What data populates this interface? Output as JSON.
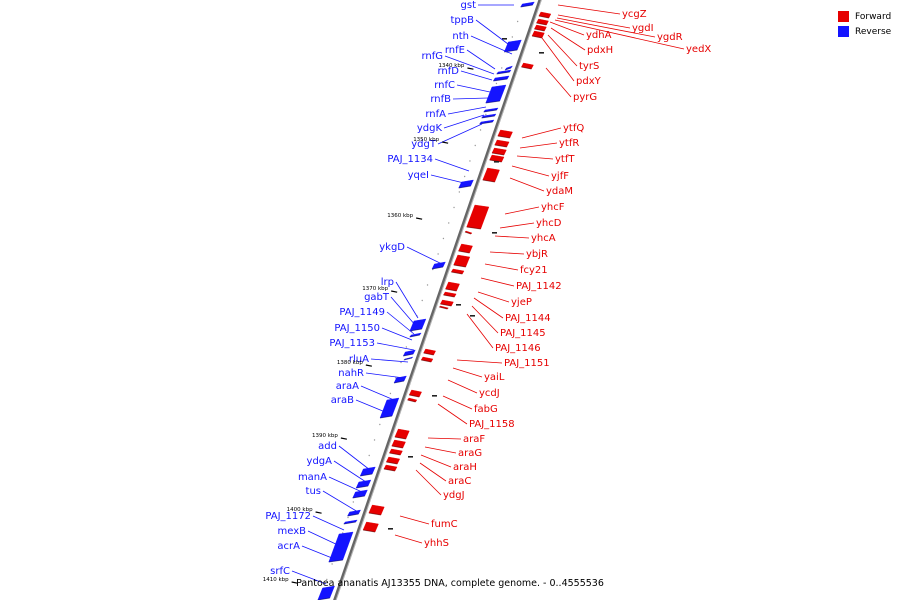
{
  "colors": {
    "forward": "#e60000",
    "reverse": "#1414ff",
    "backbone": "#808080"
  },
  "legend": {
    "forward": "Forward",
    "reverse": "Reverse"
  },
  "caption": "Pantoea ananatis AJ13355 DNA, complete genome. - 0..4555536",
  "ticks": [
    "1340 kbp",
    "1350 kbp",
    "1360 kbp",
    "1370 kbp",
    "1380 kbp",
    "1390 kbp",
    "1400 kbp",
    "1410 kbp"
  ],
  "reverse_genes": [
    "gst",
    "tppB",
    "nth",
    "rnfE",
    "rnfG",
    "rnfD",
    "rnfC",
    "rnfB",
    "rnfA",
    "ydgK",
    "ydgT",
    "PAJ_1134",
    "yqeI",
    "ykgD",
    "lrp",
    "gabT",
    "PAJ_1149",
    "PAJ_1150",
    "PAJ_1153",
    "rluA",
    "nahR",
    "araA",
    "araB",
    "add",
    "ydgA",
    "manA",
    "tus",
    "PAJ_1172",
    "mexB",
    "acrA",
    "srfC"
  ],
  "forward_genes": [
    "ycgZ",
    "ygdI",
    "ygdR",
    "yedX",
    "ydhA",
    "pdxH",
    "tyrS",
    "pdxY",
    "pyrG",
    "ytfQ",
    "ytfR",
    "ytfT",
    "yjfF",
    "ydaM",
    "yhcF",
    "yhcD",
    "yhcA",
    "ybjR",
    "fcy21",
    "PAJ_1142",
    "yjeP",
    "PAJ_1144",
    "PAJ_1145",
    "PAJ_1146",
    "PAJ_1151",
    "yaiL",
    "ycdJ",
    "fabG",
    "PAJ_1158",
    "araF",
    "araG",
    "araH",
    "araC",
    "ydgJ",
    "fumC",
    "yhhS"
  ]
}
